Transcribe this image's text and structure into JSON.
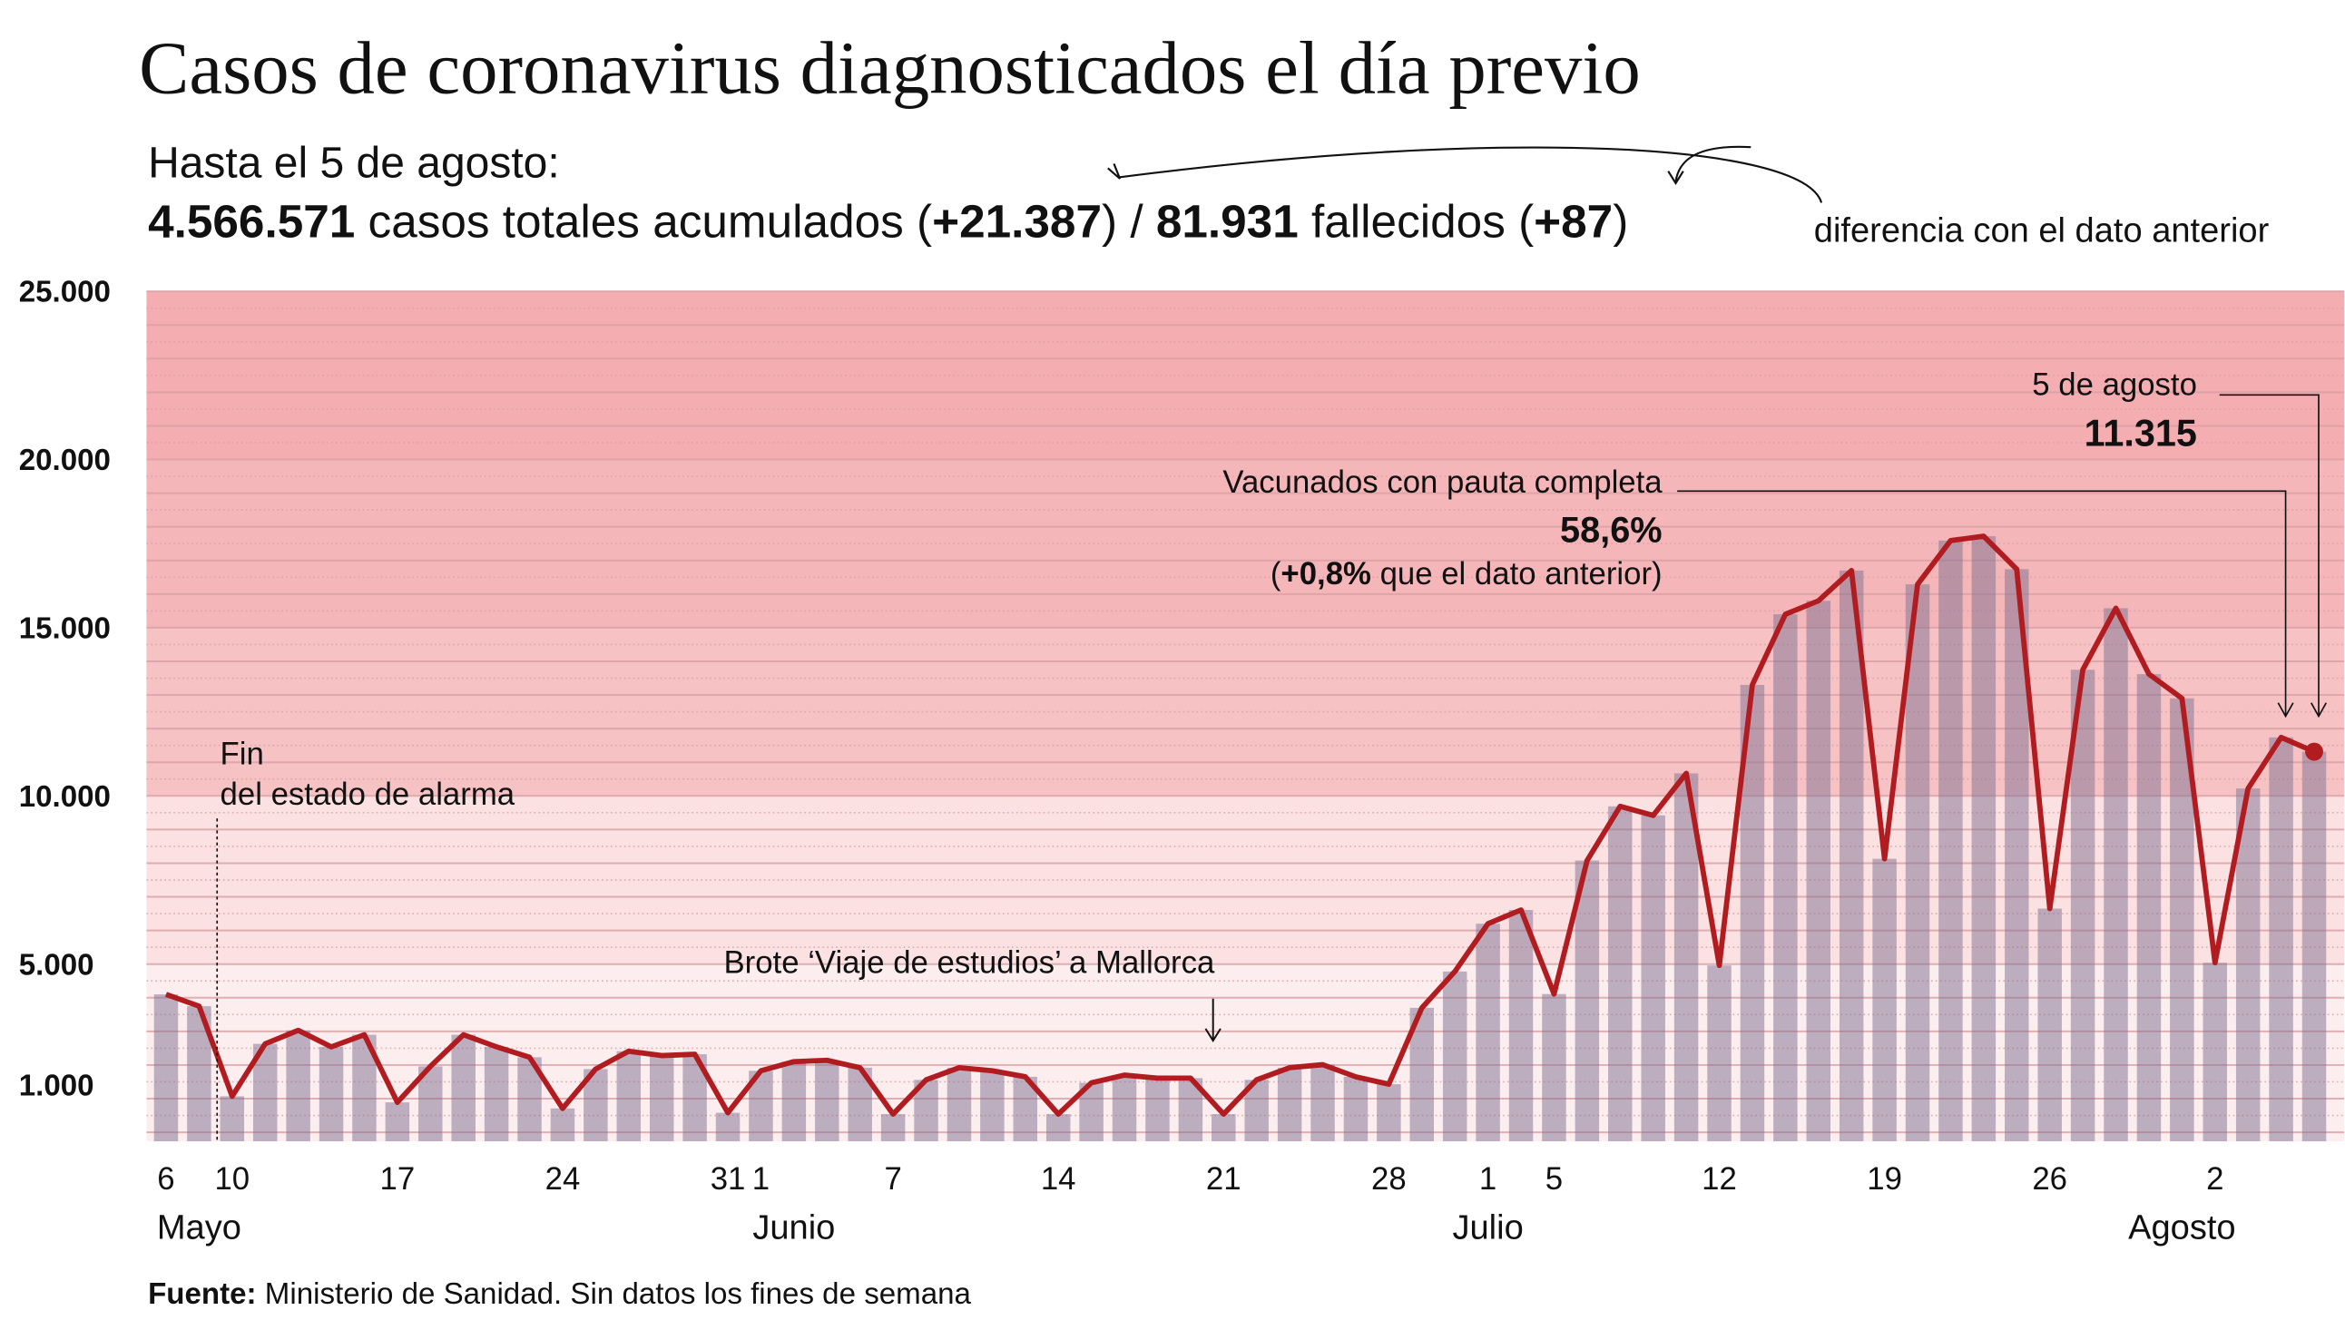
{
  "title": "Casos de coronavirus diagnosticados el día previo",
  "summary": {
    "line1": "Hasta el 5 de agosto:",
    "total_cases": "4.566.571",
    "cases_text": " casos totales acumulados (",
    "cases_diff": "+21.387",
    "sep": ") / ",
    "deaths": "81.931",
    "deaths_text": " fallecidos (",
    "deaths_diff": "+87",
    "close": ")",
    "diff_note": "diferencia con el dato anterior"
  },
  "annotations": {
    "alarm_line1": "Fin",
    "alarm_line2": "del estado de alarma",
    "outbreak": "Brote ‘Viaje de estudios’ a Mallorca",
    "vacc_label": "Vacunados con pauta completa",
    "vacc_value": "58,6%",
    "vacc_diff_bold": "+0,8%",
    "vacc_diff_open": "(",
    "vacc_diff_rest": " que el dato anterior)",
    "last_date": "5 de agosto",
    "last_value": "11.315"
  },
  "source": {
    "label": "Fuente:",
    "text": " Ministerio de Sanidad. Sin datos los fines de semana"
  },
  "colors": {
    "line": "#b01c1f",
    "bar": "#7d7090",
    "band_top": "#f4adb1",
    "band_low": "#fdeeee"
  },
  "chart_data": {
    "type": "bar+line",
    "ylim": [
      0,
      25000
    ],
    "y_ticks": [
      {
        "value": 1000,
        "label": "1.000"
      },
      {
        "value": 5000,
        "label": "5.000"
      },
      {
        "value": 10000,
        "label": "10.000"
      },
      {
        "value": 15000,
        "label": "15.000"
      },
      {
        "value": 20000,
        "label": "20.000"
      },
      {
        "value": 25000,
        "label": "25.000"
      }
    ],
    "grid": true,
    "dates": [
      "2021-05-06",
      "2021-05-07",
      "2021-05-10",
      "2021-05-11",
      "2021-05-12",
      "2021-05-13",
      "2021-05-14",
      "2021-05-17",
      "2021-05-18",
      "2021-05-19",
      "2021-05-20",
      "2021-05-21",
      "2021-05-24",
      "2021-05-25",
      "2021-05-26",
      "2021-05-27",
      "2021-05-28",
      "2021-05-31",
      "2021-06-01",
      "2021-06-02",
      "2021-06-03",
      "2021-06-04",
      "2021-06-07",
      "2021-06-08",
      "2021-06-09",
      "2021-06-10",
      "2021-06-11",
      "2021-06-14",
      "2021-06-15",
      "2021-06-16",
      "2021-06-17",
      "2021-06-18",
      "2021-06-21",
      "2021-06-22",
      "2021-06-23",
      "2021-06-24",
      "2021-06-25",
      "2021-06-28",
      "2021-06-29",
      "2021-06-30",
      "2021-07-01",
      "2021-07-02",
      "2021-07-05",
      "2021-07-06",
      "2021-07-07",
      "2021-07-08",
      "2021-07-09",
      "2021-07-12",
      "2021-07-13",
      "2021-07-14",
      "2021-07-15",
      "2021-07-16",
      "2021-07-19",
      "2021-07-20",
      "2021-07-21",
      "2021-07-22",
      "2021-07-23",
      "2021-07-26",
      "2021-07-27",
      "2021-07-28",
      "2021-07-29",
      "2021-07-30",
      "2021-08-02",
      "2021-08-03",
      "2021-08-04",
      "2021-08-05"
    ],
    "values": [
      4100,
      3750,
      1070,
      2630,
      3030,
      2540,
      2900,
      890,
      1960,
      2900,
      2540,
      2230,
      710,
      1880,
      2410,
      2280,
      2320,
      580,
      1830,
      2100,
      2140,
      1920,
      540,
      1560,
      1920,
      1830,
      1650,
      540,
      1470,
      1700,
      1610,
      1610,
      540,
      1560,
      1920,
      2010,
      1650,
      1430,
      3700,
      4780,
      6200,
      6610,
      4110,
      8080,
      9690,
      9420,
      10670,
      4960,
      13300,
      15400,
      15800,
      16700,
      8130,
      16290,
      17590,
      17720,
      16740,
      6650,
      13750,
      15580,
      13620,
      12900,
      5040,
      10220,
      11740,
      11315
    ],
    "x_ticks": [
      {
        "date": "2021-05-06",
        "label": "6"
      },
      {
        "date": "2021-05-10",
        "label": "10"
      },
      {
        "date": "2021-05-17",
        "label": "17"
      },
      {
        "date": "2021-05-24",
        "label": "24"
      },
      {
        "date": "2021-05-31",
        "label": "31"
      },
      {
        "date": "2021-06-01",
        "label": "1"
      },
      {
        "date": "2021-06-07",
        "label": "7"
      },
      {
        "date": "2021-06-14",
        "label": "14"
      },
      {
        "date": "2021-06-21",
        "label": "21"
      },
      {
        "date": "2021-06-28",
        "label": "28"
      },
      {
        "date": "2021-07-01",
        "label": "1"
      },
      {
        "date": "2021-07-05",
        "label": "5"
      },
      {
        "date": "2021-07-12",
        "label": "12"
      },
      {
        "date": "2021-07-19",
        "label": "19"
      },
      {
        "date": "2021-07-26",
        "label": "26"
      },
      {
        "date": "2021-08-02",
        "label": "2"
      }
    ],
    "months": [
      {
        "date": "2021-05-07",
        "label": "Mayo"
      },
      {
        "date": "2021-06-02",
        "label": "Junio"
      },
      {
        "date": "2021-07-01",
        "label": "Julio"
      },
      {
        "date": "2021-07-30",
        "label": "Agosto"
      }
    ]
  }
}
